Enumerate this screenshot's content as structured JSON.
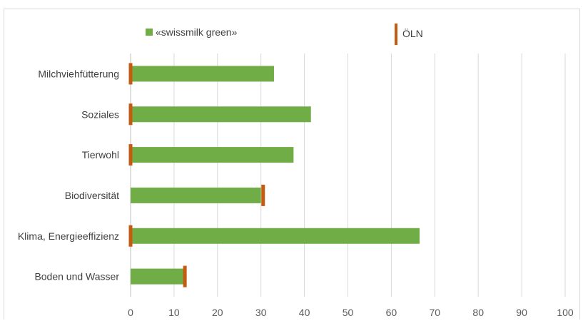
{
  "chart_data": {
    "type": "bar",
    "orientation": "horizontal",
    "categories": [
      "Milchviehfütterung",
      "Soziales",
      "Tierwohl",
      "Biodiversität",
      "Klima, Energieeffizienz",
      "Boden und Wasser"
    ],
    "series": [
      {
        "name": "«swissmilk green»",
        "values": [
          33,
          41.5,
          37.5,
          30,
          66.5,
          12.5
        ],
        "color": "#70AD47",
        "style": "bar"
      },
      {
        "name": "ÖLN",
        "values": [
          0,
          0,
          0,
          30.5,
          0,
          12.5
        ],
        "color": "#C55A11",
        "style": "marker"
      }
    ],
    "xticks": [
      "0",
      "10",
      "20",
      "30",
      "40",
      "50",
      "60",
      "70",
      "80",
      "90",
      "100"
    ],
    "xlim": [
      0,
      100
    ],
    "grid": true,
    "legend_position": "top"
  }
}
